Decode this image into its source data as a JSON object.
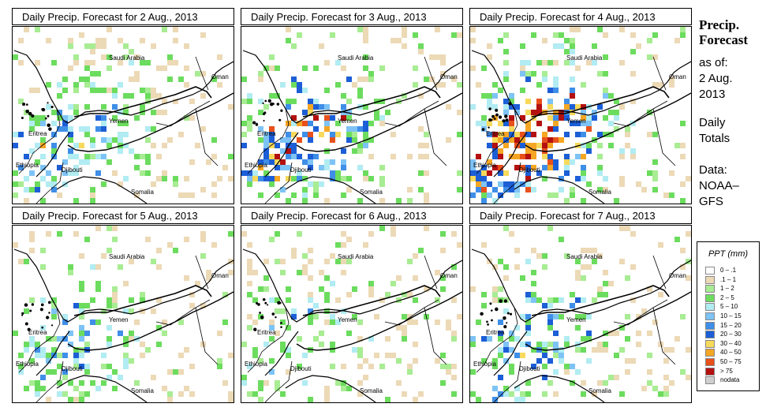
{
  "panels": [
    {
      "title": "Daily Precip. Forecast for  2 Aug., 2013",
      "intensity": 0.55,
      "seed": 11
    },
    {
      "title": "Daily Precip. Forecast for  3 Aug., 2013",
      "intensity": 0.75,
      "seed": 23
    },
    {
      "title": "Daily Precip. Forecast for  4 Aug., 2013",
      "intensity": 1.0,
      "seed": 37
    },
    {
      "title": "Daily Precip. Forecast for  5 Aug., 2013",
      "intensity": 0.45,
      "seed": 41
    },
    {
      "title": "Daily Precip. Forecast for  6 Aug., 2013",
      "intensity": 0.35,
      "seed": 53
    },
    {
      "title": "Daily Precip. Forecast for  7 Aug., 2013",
      "intensity": 0.55,
      "seed": 67
    }
  ],
  "places": {
    "saudi": "Saudi Arabia",
    "oman": "Oman",
    "yemen": "Yemen",
    "eritrea": "Eritrea",
    "ethiopia": "Ethiopia",
    "djibouti": "Djibouti",
    "somalia": "Somalia"
  },
  "sidebar": {
    "title_line1": "Precip.",
    "title_line2": "Forecast",
    "asof_line1": "as of:",
    "asof_line2": "2 Aug.",
    "asof_line3": "2013",
    "totals_line1": "Daily",
    "totals_line2": "Totals",
    "data_line1": "Data:",
    "data_line2": "NOAA–",
    "data_line3": "GFS"
  },
  "legend": {
    "title": "PPT (mm)",
    "items": [
      {
        "label": "0 – .1",
        "color": "#ffffff"
      },
      {
        "label": ".1 – 1",
        "color": "#ecd9b6"
      },
      {
        "label": "1 – 2",
        "color": "#a8ec93"
      },
      {
        "label": "2 – 5",
        "color": "#6cdc5e"
      },
      {
        "label": "5 – 10",
        "color": "#b1ecf2"
      },
      {
        "label": "10 – 15",
        "color": "#7ec3f5"
      },
      {
        "label": "15 – 20",
        "color": "#3f8ee8"
      },
      {
        "label": "20 – 30",
        "color": "#1c5ed6"
      },
      {
        "label": "30 – 40",
        "color": "#f7d95c"
      },
      {
        "label": "40 – 50",
        "color": "#f5a623"
      },
      {
        "label": "50 – 75",
        "color": "#e8501c"
      },
      {
        "label": "> 75",
        "color": "#b3100f"
      },
      {
        "label": "nodata",
        "color": "#cfcfcf"
      }
    ]
  }
}
